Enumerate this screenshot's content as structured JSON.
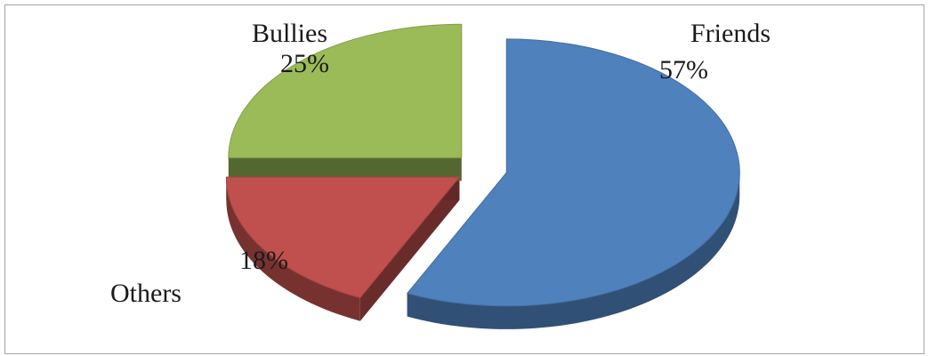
{
  "chart_data": {
    "type": "pie",
    "title": "",
    "style": "3d-exploded",
    "legend": "none",
    "slices": [
      {
        "label": "Friends",
        "value": 57,
        "percent_label": "57%",
        "color": "#4f81bd"
      },
      {
        "label": "Others",
        "value": 18,
        "percent_label": "18%",
        "color": "#c0504d"
      },
      {
        "label": "Bullies",
        "value": 25,
        "percent_label": "25%",
        "color": "#9bbb59"
      }
    ]
  }
}
